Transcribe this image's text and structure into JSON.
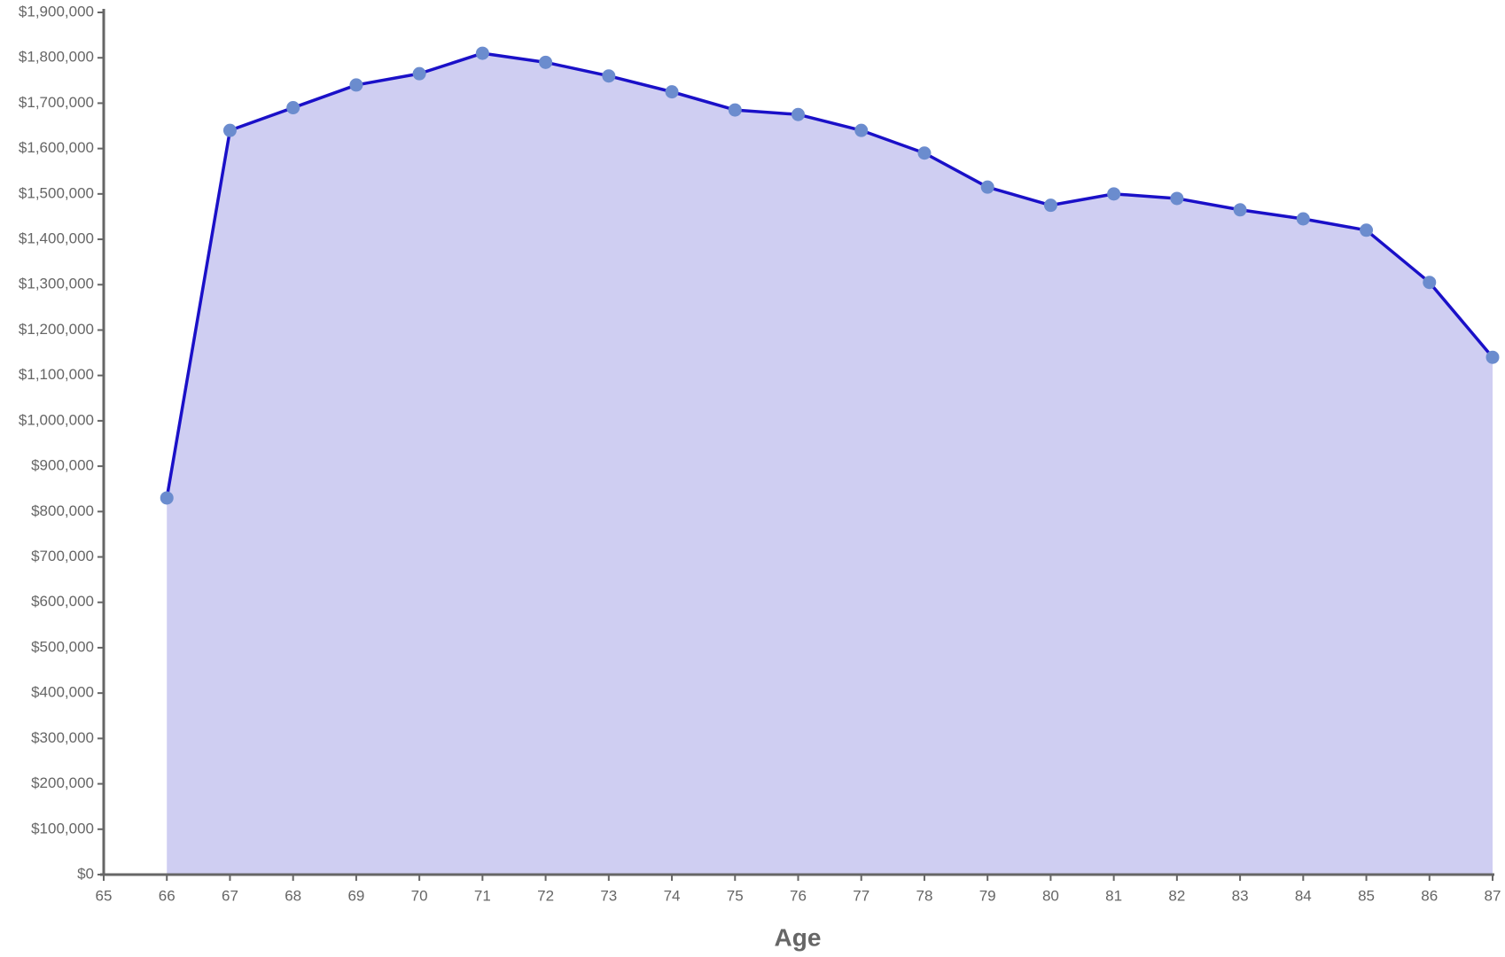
{
  "chart_data": {
    "type": "area",
    "x_label": "Age",
    "x": [
      66,
      67,
      68,
      69,
      70,
      71,
      72,
      73,
      74,
      75,
      76,
      77,
      78,
      79,
      80,
      81,
      82,
      83,
      84,
      85,
      86,
      87
    ],
    "values": [
      830000,
      1640000,
      1690000,
      1740000,
      1765000,
      1810000,
      1790000,
      1760000,
      1725000,
      1685000,
      1675000,
      1640000,
      1590000,
      1515000,
      1475000,
      1500000,
      1490000,
      1465000,
      1445000,
      1420000,
      1305000,
      1140000
    ],
    "color": "#1a10c8",
    "fill_color": "#cfcef2",
    "marker_color": "#6b8cce",
    "xlim": [
      65,
      87
    ],
    "xticks": [
      65,
      66,
      67,
      68,
      69,
      70,
      71,
      72,
      73,
      74,
      75,
      76,
      77,
      78,
      79,
      80,
      81,
      82,
      83,
      84,
      85,
      86,
      87
    ],
    "ylim": [
      0,
      1900000
    ],
    "yticks": [
      {
        "value": 0,
        "label": "$0"
      },
      {
        "value": 100000,
        "label": "$100,000"
      },
      {
        "value": 200000,
        "label": "$200,000"
      },
      {
        "value": 300000,
        "label": "$300,000"
      },
      {
        "value": 400000,
        "label": "$400,000"
      },
      {
        "value": 500000,
        "label": "$500,000"
      },
      {
        "value": 600000,
        "label": "$600,000"
      },
      {
        "value": 700000,
        "label": "$700,000"
      },
      {
        "value": 800000,
        "label": "$800,000"
      },
      {
        "value": 900000,
        "label": "$900,000"
      },
      {
        "value": 1000000,
        "label": "$1,000,000"
      },
      {
        "value": 1100000,
        "label": "$1,100,000"
      },
      {
        "value": 1200000,
        "label": "$1,200,000"
      },
      {
        "value": 1300000,
        "label": "$1,300,000"
      },
      {
        "value": 1400000,
        "label": "$1,400,000"
      },
      {
        "value": 1500000,
        "label": "$1,500,000"
      },
      {
        "value": 1600000,
        "label": "$1,600,000"
      },
      {
        "value": 1700000,
        "label": "$1,700,000"
      },
      {
        "value": 1800000,
        "label": "$1,800,000"
      },
      {
        "value": 1900000,
        "label": "$1,900,000"
      }
    ],
    "grid": false
  }
}
